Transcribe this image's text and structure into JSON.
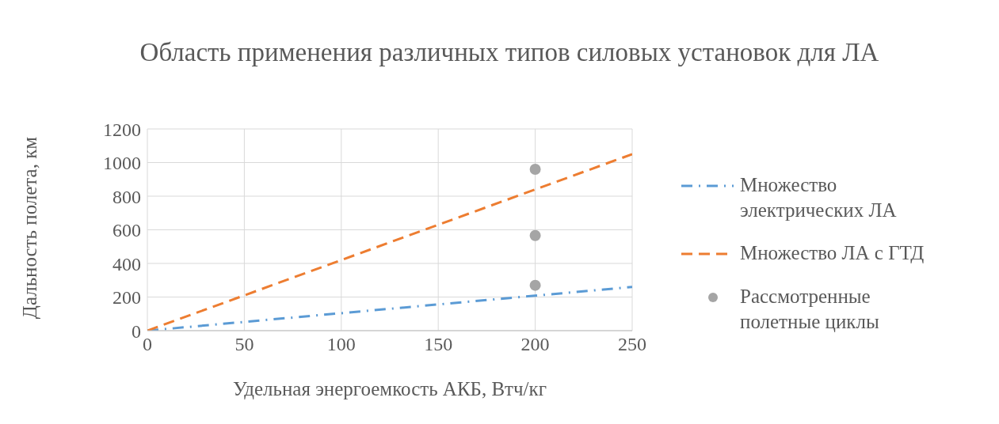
{
  "chart_data": {
    "type": "line",
    "title": "Область применения различных типов силовых установок для ЛА",
    "xlabel": "Удельная энергоемкость АКБ, Втч/кг",
    "ylabel": "Дальность полета, км",
    "xlim": [
      0,
      250
    ],
    "xticks": [
      0,
      50,
      100,
      150,
      200,
      250
    ],
    "ylim": [
      0,
      1200
    ],
    "yticks": [
      0,
      200,
      400,
      600,
      800,
      1000,
      1200
    ],
    "grid": true,
    "legend": "right",
    "series": [
      {
        "name": "Множество электрических ЛА",
        "color": "#5b9bd5",
        "line_style": "dashdot",
        "marker": "none",
        "x": [
          0,
          250
        ],
        "values": [
          0,
          260
        ]
      },
      {
        "name": "Множество ЛА с ГТД",
        "color": "#ed7d31",
        "line_style": "dashed",
        "marker": "none",
        "x": [
          0,
          250
        ],
        "values": [
          0,
          1050
        ]
      },
      {
        "name": "Рассмотренные полетные циклы",
        "type": "scatter",
        "color": "#a5a5a5",
        "marker": "circle",
        "x": [
          200,
          200,
          200
        ],
        "values": [
          960,
          566,
          270
        ]
      }
    ]
  }
}
